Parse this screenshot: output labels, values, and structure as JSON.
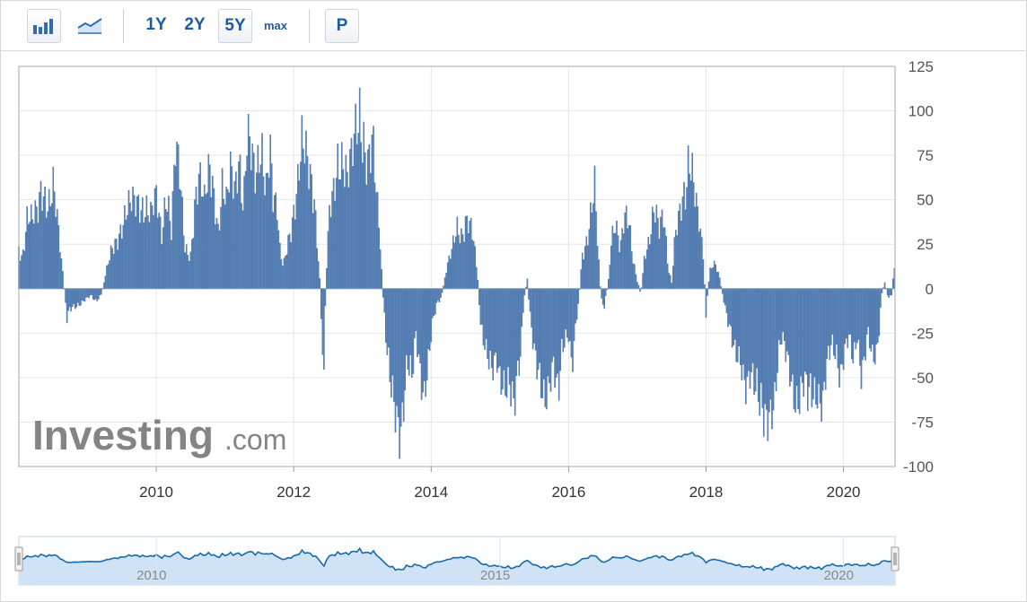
{
  "toolbar": {
    "bar_chart_icon": "bar-chart-icon",
    "line_chart_icon": "line-chart-icon",
    "periods": [
      "1Y",
      "2Y",
      "5Y",
      "max"
    ],
    "active_period": "5Y",
    "p_label": "P"
  },
  "watermark": {
    "brand": "Investing",
    "suffix": ".com"
  },
  "colors": {
    "bar": "#5b85bb",
    "bar_stroke": "#3d6aa3",
    "grid": "#e6e6e6",
    "navigator_line": "#1a6aa8",
    "navigator_fill": "#cfe2f6",
    "toolbar_text": "#1f5aa6"
  },
  "chart_data": {
    "type": "bar",
    "title": "",
    "xlabel": "",
    "ylabel": "",
    "x_range": [
      2008.0,
      2020.75
    ],
    "ylim": [
      -100,
      125
    ],
    "y_ticks": [
      125,
      100,
      75,
      50,
      25,
      0,
      -25,
      -50,
      -75,
      -100
    ],
    "x_ticks": [
      2010,
      2012,
      2014,
      2016,
      2018,
      2020
    ],
    "grid": true,
    "bar_step_years": 0.02,
    "series": [
      {
        "values_note": "",
        "points": [
          [
            2008.0,
            25
          ],
          [
            2008.05,
            18
          ],
          [
            2008.12,
            38
          ],
          [
            2008.2,
            36
          ],
          [
            2008.28,
            45
          ],
          [
            2008.33,
            62
          ],
          [
            2008.4,
            52
          ],
          [
            2008.45,
            48
          ],
          [
            2008.5,
            55
          ],
          [
            2008.58,
            30
          ],
          [
            2008.65,
            5
          ],
          [
            2008.7,
            -18
          ],
          [
            2008.75,
            -12
          ],
          [
            2008.85,
            -9
          ],
          [
            2008.95,
            -6
          ],
          [
            2009.05,
            -4
          ],
          [
            2009.12,
            -8
          ],
          [
            2009.2,
            -3
          ],
          [
            2009.28,
            10
          ],
          [
            2009.35,
            22
          ],
          [
            2009.45,
            32
          ],
          [
            2009.55,
            40
          ],
          [
            2009.65,
            46
          ],
          [
            2009.75,
            50
          ],
          [
            2009.85,
            48
          ],
          [
            2009.92,
            40
          ],
          [
            2010.0,
            48
          ],
          [
            2010.08,
            30
          ],
          [
            2010.15,
            60
          ],
          [
            2010.22,
            35
          ],
          [
            2010.28,
            78
          ],
          [
            2010.35,
            55
          ],
          [
            2010.42,
            22
          ],
          [
            2010.5,
            20
          ],
          [
            2010.56,
            50
          ],
          [
            2010.62,
            62
          ],
          [
            2010.7,
            45
          ],
          [
            2010.78,
            68
          ],
          [
            2010.85,
            55
          ],
          [
            2010.9,
            35
          ],
          [
            2010.96,
            58
          ],
          [
            2011.02,
            45
          ],
          [
            2011.08,
            62
          ],
          [
            2011.15,
            55
          ],
          [
            2011.2,
            80
          ],
          [
            2011.27,
            50
          ],
          [
            2011.32,
            88
          ],
          [
            2011.38,
            72
          ],
          [
            2011.45,
            55
          ],
          [
            2011.5,
            75
          ],
          [
            2011.55,
            80
          ],
          [
            2011.6,
            62
          ],
          [
            2011.65,
            88
          ],
          [
            2011.7,
            50
          ],
          [
            2011.76,
            40
          ],
          [
            2011.8,
            20
          ],
          [
            2011.85,
            12
          ],
          [
            2011.9,
            25
          ],
          [
            2011.95,
            35
          ],
          [
            2012.0,
            45
          ],
          [
            2012.05,
            55
          ],
          [
            2012.12,
            75
          ],
          [
            2012.18,
            72
          ],
          [
            2012.25,
            65
          ],
          [
            2012.3,
            55
          ],
          [
            2012.34,
            30
          ],
          [
            2012.38,
            5
          ],
          [
            2012.41,
            -30
          ],
          [
            2012.43,
            -50
          ],
          [
            2012.47,
            5
          ],
          [
            2012.52,
            40
          ],
          [
            2012.58,
            55
          ],
          [
            2012.65,
            80
          ],
          [
            2012.72,
            75
          ],
          [
            2012.78,
            60
          ],
          [
            2012.85,
            70
          ],
          [
            2012.92,
            90
          ],
          [
            2012.96,
            100
          ],
          [
            2013.02,
            90
          ],
          [
            2013.08,
            75
          ],
          [
            2013.15,
            80
          ],
          [
            2013.2,
            50
          ],
          [
            2013.25,
            30
          ],
          [
            2013.3,
            -5
          ],
          [
            2013.35,
            -35
          ],
          [
            2013.4,
            -55
          ],
          [
            2013.45,
            -65
          ],
          [
            2013.5,
            -70
          ],
          [
            2013.55,
            -75
          ],
          [
            2013.6,
            -60
          ],
          [
            2013.65,
            -40
          ],
          [
            2013.72,
            -55
          ],
          [
            2013.78,
            -28
          ],
          [
            2013.85,
            -50
          ],
          [
            2013.9,
            -55
          ],
          [
            2013.95,
            -40
          ],
          [
            2014.02,
            -20
          ],
          [
            2014.08,
            -10
          ],
          [
            2014.15,
            -5
          ],
          [
            2014.22,
            10
          ],
          [
            2014.3,
            20
          ],
          [
            2014.38,
            35
          ],
          [
            2014.45,
            32
          ],
          [
            2014.5,
            40
          ],
          [
            2014.55,
            38
          ],
          [
            2014.62,
            25
          ],
          [
            2014.68,
            5
          ],
          [
            2014.72,
            -20
          ],
          [
            2014.8,
            -40
          ],
          [
            2014.88,
            -48
          ],
          [
            2014.95,
            -35
          ],
          [
            2015.0,
            -45
          ],
          [
            2015.08,
            -55
          ],
          [
            2015.15,
            -60
          ],
          [
            2015.2,
            -75
          ],
          [
            2015.25,
            -50
          ],
          [
            2015.3,
            -35
          ],
          [
            2015.35,
            -5
          ],
          [
            2015.4,
            5
          ],
          [
            2015.45,
            -20
          ],
          [
            2015.52,
            -45
          ],
          [
            2015.58,
            -55
          ],
          [
            2015.65,
            -60
          ],
          [
            2015.72,
            -48
          ],
          [
            2015.78,
            -40
          ],
          [
            2015.85,
            -65
          ],
          [
            2015.9,
            -40
          ],
          [
            2015.95,
            -30
          ],
          [
            2016.0,
            -25
          ],
          [
            2016.05,
            -40
          ],
          [
            2016.1,
            -20
          ],
          [
            2016.15,
            -5
          ],
          [
            2016.2,
            20
          ],
          [
            2016.27,
            30
          ],
          [
            2016.33,
            45
          ],
          [
            2016.38,
            55
          ],
          [
            2016.42,
            25
          ],
          [
            2016.47,
            -5
          ],
          [
            2016.52,
            -10
          ],
          [
            2016.58,
            5
          ],
          [
            2016.62,
            30
          ],
          [
            2016.68,
            38
          ],
          [
            2016.75,
            20
          ],
          [
            2016.82,
            38
          ],
          [
            2016.88,
            38
          ],
          [
            2016.95,
            15
          ],
          [
            2017.0,
            5
          ],
          [
            2017.05,
            -3
          ],
          [
            2017.1,
            15
          ],
          [
            2017.18,
            25
          ],
          [
            2017.25,
            48
          ],
          [
            2017.32,
            40
          ],
          [
            2017.38,
            45
          ],
          [
            2017.45,
            10
          ],
          [
            2017.5,
            3
          ],
          [
            2017.55,
            28
          ],
          [
            2017.6,
            40
          ],
          [
            2017.65,
            55
          ],
          [
            2017.7,
            60
          ],
          [
            2017.75,
            75
          ],
          [
            2017.8,
            62
          ],
          [
            2017.85,
            45
          ],
          [
            2017.9,
            35
          ],
          [
            2017.96,
            20
          ],
          [
            2018.0,
            -15
          ],
          [
            2018.05,
            10
          ],
          [
            2018.1,
            15
          ],
          [
            2018.15,
            12
          ],
          [
            2018.2,
            5
          ],
          [
            2018.28,
            -10
          ],
          [
            2018.35,
            -25
          ],
          [
            2018.42,
            -40
          ],
          [
            2018.5,
            -40
          ],
          [
            2018.58,
            -50
          ],
          [
            2018.65,
            -45
          ],
          [
            2018.72,
            -60
          ],
          [
            2018.78,
            -70
          ],
          [
            2018.85,
            -72
          ],
          [
            2018.92,
            -65
          ],
          [
            2019.0,
            -60
          ],
          [
            2019.05,
            -40
          ],
          [
            2019.1,
            -30
          ],
          [
            2019.18,
            -40
          ],
          [
            2019.25,
            -50
          ],
          [
            2019.3,
            -58
          ],
          [
            2019.35,
            -60
          ],
          [
            2019.42,
            -55
          ],
          [
            2019.48,
            -65
          ],
          [
            2019.55,
            -60
          ],
          [
            2019.62,
            -55
          ],
          [
            2019.7,
            -60
          ],
          [
            2019.75,
            -45
          ],
          [
            2019.82,
            -35
          ],
          [
            2019.9,
            -40
          ],
          [
            2019.95,
            -48
          ],
          [
            2020.02,
            -30
          ],
          [
            2020.08,
            -25
          ],
          [
            2020.15,
            -45
          ],
          [
            2020.2,
            -30
          ],
          [
            2020.25,
            -52
          ],
          [
            2020.3,
            -40
          ],
          [
            2020.35,
            -20
          ],
          [
            2020.42,
            -35
          ],
          [
            2020.48,
            -40
          ],
          [
            2020.52,
            -25
          ],
          [
            2020.56,
            -3
          ],
          [
            2020.6,
            4
          ],
          [
            2020.65,
            -5
          ],
          [
            2020.7,
            -3
          ],
          [
            2020.75,
            16
          ]
        ]
      }
    ],
    "navigator": {
      "x_ticks": [
        "2010",
        "2015",
        "2020"
      ]
    }
  }
}
